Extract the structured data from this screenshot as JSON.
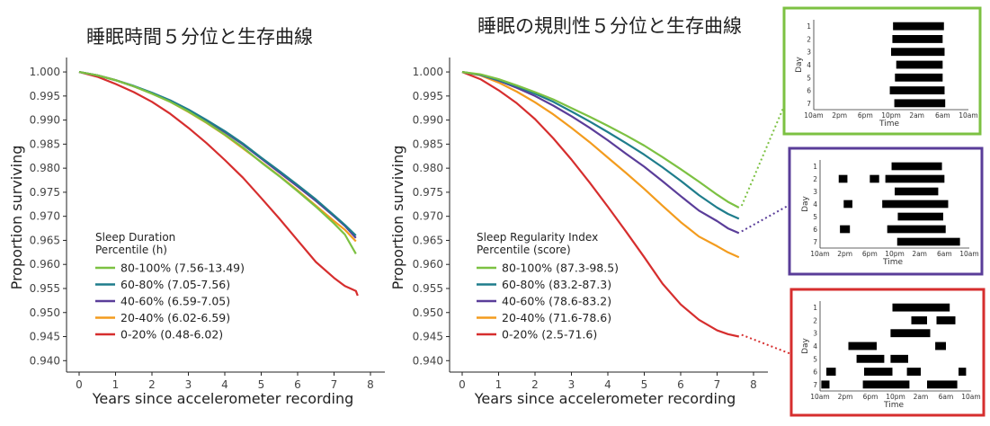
{
  "colors": {
    "q5": "#7cc142",
    "q4": "#1f7d8c",
    "q3": "#5a3d99",
    "q2": "#f39c1e",
    "q1": "#d62e2e",
    "axis": "#222222",
    "text": "#222222",
    "bar": "#000000"
  },
  "chart_data": [
    {
      "type": "line",
      "title": "睡眠時間５分位と生存曲線",
      "xlabel": "Years since accelerometer recording",
      "ylabel": "Proportion surviving",
      "xlim": [
        0,
        8
      ],
      "ylim": [
        0.938,
        1.003
      ],
      "x_ticks": [
        "0",
        "1",
        "2",
        "3",
        "4",
        "5",
        "6",
        "7",
        "8"
      ],
      "y_ticks": [
        "1.000",
        "0.995",
        "0.990",
        "0.985",
        "0.980",
        "0.975",
        "0.970",
        "0.965",
        "0.960",
        "0.955",
        "0.950",
        "0.945",
        "0.940"
      ],
      "grid": false,
      "legend_position": "lower-left",
      "legend_title": [
        "Sleep Duration",
        "Percentile (h)"
      ],
      "series": [
        {
          "name": "80-100% (7.56-13.49)",
          "color": "#7cc142",
          "x": [
            0,
            0.5,
            1,
            1.5,
            2,
            2.5,
            3,
            3.5,
            4,
            4.5,
            5,
            5.5,
            6,
            6.5,
            7,
            7.3,
            7.6
          ],
          "y": [
            1.0,
            0.9993,
            0.9983,
            0.997,
            0.9955,
            0.9938,
            0.9918,
            0.9895,
            0.987,
            0.9843,
            0.9812,
            0.9783,
            0.9752,
            0.972,
            0.9685,
            0.9662,
            0.9622
          ]
        },
        {
          "name": "60-80% (7.05-7.56)",
          "color": "#1f7d8c",
          "x": [
            0,
            0.5,
            1,
            1.5,
            2,
            2.5,
            3,
            3.5,
            4,
            4.5,
            5,
            5.5,
            6,
            6.5,
            7,
            7.3,
            7.6
          ],
          "y": [
            1.0,
            0.9993,
            0.9983,
            0.9971,
            0.9957,
            0.9941,
            0.9922,
            0.99,
            0.9877,
            0.9851,
            0.9822,
            0.9794,
            0.9765,
            0.9735,
            0.9702,
            0.9682,
            0.966
          ]
        },
        {
          "name": "40-60% (6.59-7.05)",
          "color": "#5a3d99",
          "x": [
            0,
            0.5,
            1,
            1.5,
            2,
            2.5,
            3,
            3.5,
            4,
            4.5,
            5,
            5.5,
            6,
            6.5,
            7,
            7.3,
            7.6
          ],
          "y": [
            1.0,
            0.9993,
            0.9983,
            0.997,
            0.9956,
            0.994,
            0.992,
            0.9898,
            0.9875,
            0.9849,
            0.982,
            0.9791,
            0.9762,
            0.9732,
            0.97,
            0.968,
            0.9655
          ]
        },
        {
          "name": "20-40% (6.02-6.59)",
          "color": "#f39c1e",
          "x": [
            0,
            0.5,
            1,
            1.5,
            2,
            2.5,
            3,
            3.5,
            4,
            4.5,
            5,
            5.5,
            6,
            6.5,
            7,
            7.3,
            7.6
          ],
          "y": [
            1.0,
            0.9993,
            0.9983,
            0.997,
            0.9955,
            0.9938,
            0.9917,
            0.9894,
            0.9869,
            0.9841,
            0.9813,
            0.9784,
            0.9754,
            0.9722,
            0.969,
            0.9672,
            0.9648
          ]
        },
        {
          "name": "0-20% (0.48-6.02)",
          "color": "#d62e2e",
          "x": [
            0,
            0.5,
            1,
            1.5,
            2,
            2.5,
            3,
            3.5,
            4,
            4.5,
            5,
            5.5,
            6,
            6.5,
            7,
            7.3,
            7.6,
            7.65
          ],
          "y": [
            1.0,
            0.999,
            0.9975,
            0.9958,
            0.9938,
            0.9913,
            0.9884,
            0.9852,
            0.9817,
            0.978,
            0.9738,
            0.9695,
            0.965,
            0.9605,
            0.9572,
            0.9555,
            0.9545,
            0.9535
          ]
        }
      ]
    },
    {
      "type": "line",
      "title": "睡眠の規則性５分位と生存曲線",
      "xlabel": "Years since accelerometer recording",
      "ylabel": "Proportion surviving",
      "xlim": [
        0,
        8
      ],
      "ylim": [
        0.938,
        1.003
      ],
      "x_ticks": [
        "0",
        "1",
        "2",
        "3",
        "4",
        "5",
        "6",
        "7",
        "8"
      ],
      "y_ticks": [
        "1.000",
        "0.995",
        "0.990",
        "0.985",
        "0.980",
        "0.975",
        "0.970",
        "0.965",
        "0.960",
        "0.955",
        "0.950",
        "0.945",
        "0.940"
      ],
      "grid": false,
      "legend_position": "lower-left",
      "legend_title": [
        "Sleep Regularity Index",
        "Percentile (score)"
      ],
      "series": [
        {
          "name": "80-100% (87.3-98.5)",
          "color": "#7cc142",
          "x": [
            0,
            0.5,
            1,
            1.5,
            2,
            2.5,
            3,
            3.5,
            4,
            4.5,
            5,
            5.5,
            6,
            6.5,
            7,
            7.3,
            7.6
          ],
          "y": [
            1.0,
            0.9995,
            0.9985,
            0.9972,
            0.9958,
            0.9943,
            0.9925,
            0.9907,
            0.9888,
            0.9868,
            0.9847,
            0.9823,
            0.9798,
            0.9772,
            0.9745,
            0.973,
            0.9718
          ]
        },
        {
          "name": "60-80% (83.2-87.3)",
          "color": "#1f7d8c",
          "x": [
            0,
            0.5,
            1,
            1.5,
            2,
            2.5,
            3,
            3.5,
            4,
            4.5,
            5,
            5.5,
            6,
            6.5,
            7,
            7.3,
            7.6
          ],
          "y": [
            1.0,
            0.9994,
            0.9983,
            0.997,
            0.9955,
            0.9938,
            0.9918,
            0.9897,
            0.9875,
            0.9852,
            0.9828,
            0.9802,
            0.9774,
            0.9744,
            0.9718,
            0.9705,
            0.9695
          ]
        },
        {
          "name": "40-60% (78.6-83.2)",
          "color": "#5a3d99",
          "x": [
            0,
            0.5,
            1,
            1.5,
            2,
            2.5,
            3,
            3.5,
            4,
            4.5,
            5,
            5.5,
            6,
            6.5,
            7,
            7.3,
            7.6
          ],
          "y": [
            1.0,
            0.9994,
            0.9982,
            0.9967,
            0.995,
            0.993,
            0.9908,
            0.9884,
            0.9858,
            0.983,
            0.9803,
            0.9773,
            0.9742,
            0.9712,
            0.969,
            0.9675,
            0.9665
          ]
        },
        {
          "name": "20-40% (71.6-78.6)",
          "color": "#f39c1e",
          "x": [
            0,
            0.5,
            1,
            1.5,
            2,
            2.5,
            3,
            3.5,
            4,
            4.5,
            5,
            5.5,
            6,
            6.5,
            7,
            7.3,
            7.6
          ],
          "y": [
            1.0,
            0.9993,
            0.9978,
            0.9959,
            0.9937,
            0.9912,
            0.9884,
            0.9854,
            0.9822,
            0.979,
            0.9757,
            0.9722,
            0.9688,
            0.9658,
            0.9638,
            0.9625,
            0.9615
          ]
        },
        {
          "name": "0-20% (2.5-71.6)",
          "color": "#d62e2e",
          "x": [
            0,
            0.5,
            1,
            1.5,
            2,
            2.5,
            3,
            3.5,
            4,
            4.5,
            5,
            5.5,
            6,
            6.5,
            7,
            7.3,
            7.6
          ],
          "y": [
            1.0,
            0.9985,
            0.9962,
            0.9935,
            0.9902,
            0.9862,
            0.9818,
            0.977,
            0.972,
            0.9668,
            0.9615,
            0.956,
            0.9517,
            0.9485,
            0.9463,
            0.9455,
            0.945
          ]
        }
      ]
    },
    {
      "type": "bar",
      "subtype": "sleep-raster",
      "frame_color": "#7cc142",
      "links_to_series": "80-100% (87.3-98.5)",
      "xlabel": "Time",
      "ylabel": "Day",
      "x_ticks": [
        "10am",
        "2pm",
        "6pm",
        "10pm",
        "2am",
        "6am",
        "10am"
      ],
      "days": [
        "1",
        "2",
        "3",
        "4",
        "5",
        "6",
        "7"
      ],
      "x_unit": "hours since 10am",
      "xlim": [
        0,
        24
      ],
      "bars": [
        {
          "day": 1,
          "start": 12.3,
          "end": 20.2
        },
        {
          "day": 2,
          "start": 12.2,
          "end": 20.0
        },
        {
          "day": 3,
          "start": 12.0,
          "end": 20.3
        },
        {
          "day": 4,
          "start": 12.8,
          "end": 20.0
        },
        {
          "day": 5,
          "start": 12.6,
          "end": 20.0
        },
        {
          "day": 6,
          "start": 11.8,
          "end": 20.3
        },
        {
          "day": 7,
          "start": 12.5,
          "end": 20.4
        }
      ]
    },
    {
      "type": "bar",
      "subtype": "sleep-raster",
      "frame_color": "#5a3d99",
      "links_to_series": "40-60% (78.6-83.2)",
      "xlabel": "Time",
      "ylabel": "Day",
      "x_ticks": [
        "10am",
        "2pm",
        "6pm",
        "10pm",
        "2am",
        "6am",
        "10am"
      ],
      "days": [
        "1",
        "2",
        "3",
        "4",
        "5",
        "6",
        "7"
      ],
      "x_unit": "hours since 10am",
      "xlim": [
        0,
        24
      ],
      "bars": [
        {
          "day": 1,
          "start": 11.5,
          "end": 19.6
        },
        {
          "day": 2,
          "start": 3.0,
          "end": 4.4
        },
        {
          "day": 2,
          "start": 8.0,
          "end": 9.5
        },
        {
          "day": 2,
          "start": 10.5,
          "end": 20.0
        },
        {
          "day": 3,
          "start": 12.0,
          "end": 19.0
        },
        {
          "day": 4,
          "start": 3.8,
          "end": 5.2
        },
        {
          "day": 4,
          "start": 10.0,
          "end": 20.6
        },
        {
          "day": 5,
          "start": 12.5,
          "end": 19.8
        },
        {
          "day": 6,
          "start": 3.2,
          "end": 4.8
        },
        {
          "day": 6,
          "start": 10.8,
          "end": 20.2
        },
        {
          "day": 7,
          "start": 12.4,
          "end": 22.5
        }
      ]
    },
    {
      "type": "bar",
      "subtype": "sleep-raster",
      "frame_color": "#d62e2e",
      "links_to_series": "0-20% (2.5-71.6)",
      "xlabel": "Time",
      "ylabel": "Day",
      "x_ticks": [
        "10am",
        "2pm",
        "6pm",
        "10pm",
        "2am",
        "6am",
        "10am"
      ],
      "days": [
        "1",
        "2",
        "3",
        "4",
        "5",
        "6",
        "7"
      ],
      "x_unit": "hours since 10am",
      "xlim": [
        0,
        24
      ],
      "bars": [
        {
          "day": 1,
          "start": 11.5,
          "end": 20.6
        },
        {
          "day": 2,
          "start": 14.5,
          "end": 17.0
        },
        {
          "day": 2,
          "start": 18.5,
          "end": 21.5
        },
        {
          "day": 3,
          "start": 11.2,
          "end": 17.5
        },
        {
          "day": 4,
          "start": 4.5,
          "end": 9.0
        },
        {
          "day": 4,
          "start": 18.3,
          "end": 20.0
        },
        {
          "day": 5,
          "start": 5.8,
          "end": 10.2
        },
        {
          "day": 5,
          "start": 11.2,
          "end": 14.0
        },
        {
          "day": 6,
          "start": 1.0,
          "end": 2.5
        },
        {
          "day": 6,
          "start": 7.0,
          "end": 11.5
        },
        {
          "day": 6,
          "start": 13.8,
          "end": 16.0
        },
        {
          "day": 6,
          "start": 22.0,
          "end": 23.2
        },
        {
          "day": 7,
          "start": 0.2,
          "end": 1.5
        },
        {
          "day": 7,
          "start": 6.8,
          "end": 14.2
        },
        {
          "day": 7,
          "start": 17.0,
          "end": 21.8
        }
      ]
    }
  ]
}
